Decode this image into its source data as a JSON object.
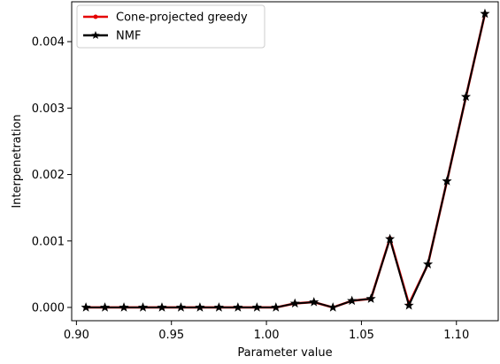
{
  "chart_data": {
    "type": "line",
    "title": "",
    "xlabel": "Parameter value",
    "ylabel": "Interpenetration",
    "xlim": [
      0.8975,
      1.122
    ],
    "ylim": [
      -0.0002,
      0.0046
    ],
    "xticks": [
      0.9,
      0.95,
      1.0,
      1.05,
      1.1
    ],
    "xtick_labels": [
      "0.90",
      "0.95",
      "1.00",
      "1.05",
      "1.10"
    ],
    "yticks": [
      0.0,
      0.001,
      0.002,
      0.003,
      0.004
    ],
    "ytick_labels": [
      "0.000",
      "0.001",
      "0.002",
      "0.003",
      "0.004"
    ],
    "grid": false,
    "legend_position": "top-left",
    "x": [
      0.905,
      0.915,
      0.925,
      0.935,
      0.945,
      0.955,
      0.965,
      0.975,
      0.985,
      0.995,
      1.005,
      1.015,
      1.025,
      1.035,
      1.045,
      1.055,
      1.065,
      1.075,
      1.085,
      1.095,
      1.105,
      1.115
    ],
    "series": [
      {
        "name": "Cone-projected greedy",
        "color": "#e50000",
        "marker": "dot",
        "values": [
          0.0,
          0.0,
          0.0,
          0.0,
          0.0,
          0.0,
          0.0,
          0.0,
          0.0,
          0.0,
          0.0,
          6e-05,
          8e-05,
          0.0,
          0.0001,
          0.00013,
          0.00104,
          5e-05,
          0.00065,
          0.0019,
          0.00317,
          0.00442
        ]
      },
      {
        "name": "NMF",
        "color": "#000000",
        "marker": "star",
        "values": [
          0.0,
          0.0,
          0.0,
          0.0,
          0.0,
          0.0,
          0.0,
          0.0,
          0.0,
          0.0,
          0.0,
          6e-05,
          8e-05,
          0.0,
          0.0001,
          0.00013,
          0.00103,
          3e-05,
          0.00065,
          0.0019,
          0.00317,
          0.00442
        ]
      }
    ]
  }
}
